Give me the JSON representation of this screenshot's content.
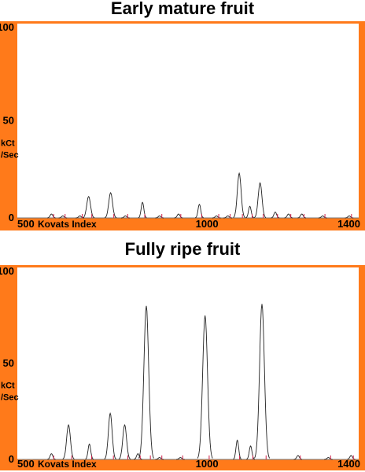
{
  "chart_data": [
    {
      "type": "line",
      "title": "Early mature fruit",
      "xlabel": "Kovats Index",
      "ylabel": "kCt /Sec",
      "ylabel_lines": [
        "kCt",
        "/Sec"
      ],
      "xlim": [
        500,
        1400
      ],
      "ylim": [
        0,
        100
      ],
      "x_ticks": [
        "500",
        "1000",
        "1400"
      ],
      "y_ticks": [
        "100",
        "50",
        "0"
      ],
      "grid": false,
      "colors": {
        "frame": "#ff7a1a",
        "trace": "#222222",
        "marker": "#d0204a"
      },
      "peaks": [
        {
          "x": 590,
          "height": 2
        },
        {
          "x": 620,
          "height": 1
        },
        {
          "x": 665,
          "height": 1
        },
        {
          "x": 688,
          "height": 11
        },
        {
          "x": 746,
          "height": 13
        },
        {
          "x": 785,
          "height": 1
        },
        {
          "x": 830,
          "height": 8
        },
        {
          "x": 875,
          "height": 1
        },
        {
          "x": 925,
          "height": 2
        },
        {
          "x": 980,
          "height": 7
        },
        {
          "x": 1025,
          "height": 1
        },
        {
          "x": 1055,
          "height": 1
        },
        {
          "x": 1085,
          "height": 23
        },
        {
          "x": 1113,
          "height": 6
        },
        {
          "x": 1140,
          "height": 18
        },
        {
          "x": 1180,
          "height": 3
        },
        {
          "x": 1215,
          "height": 2
        },
        {
          "x": 1250,
          "height": 2
        },
        {
          "x": 1305,
          "height": 1
        },
        {
          "x": 1375,
          "height": 1
        }
      ]
    },
    {
      "type": "line",
      "title": "Fully ripe fruit",
      "xlabel": "Kovats Index",
      "ylabel": "kCt /Sec",
      "ylabel_lines": [
        "kCt",
        "/Sec"
      ],
      "xlim": [
        500,
        1400
      ],
      "ylim": [
        0,
        100
      ],
      "x_ticks": [
        "500",
        "1000",
        "1400"
      ],
      "y_ticks": [
        "100",
        "50",
        "0"
      ],
      "grid": false,
      "colors": {
        "frame": "#ff7a1a",
        "trace": "#222222",
        "marker": "#d0204a"
      },
      "peaks": [
        {
          "x": 590,
          "height": 3
        },
        {
          "x": 635,
          "height": 18
        },
        {
          "x": 690,
          "height": 8
        },
        {
          "x": 745,
          "height": 24
        },
        {
          "x": 783,
          "height": 18
        },
        {
          "x": 818,
          "height": 3
        },
        {
          "x": 840,
          "height": 80
        },
        {
          "x": 875,
          "height": 1
        },
        {
          "x": 930,
          "height": 1
        },
        {
          "x": 995,
          "height": 75
        },
        {
          "x": 1080,
          "height": 10
        },
        {
          "x": 1115,
          "height": 7
        },
        {
          "x": 1145,
          "height": 81
        },
        {
          "x": 1240,
          "height": 2
        },
        {
          "x": 1320,
          "height": 1
        },
        {
          "x": 1380,
          "height": 2
        }
      ]
    }
  ]
}
